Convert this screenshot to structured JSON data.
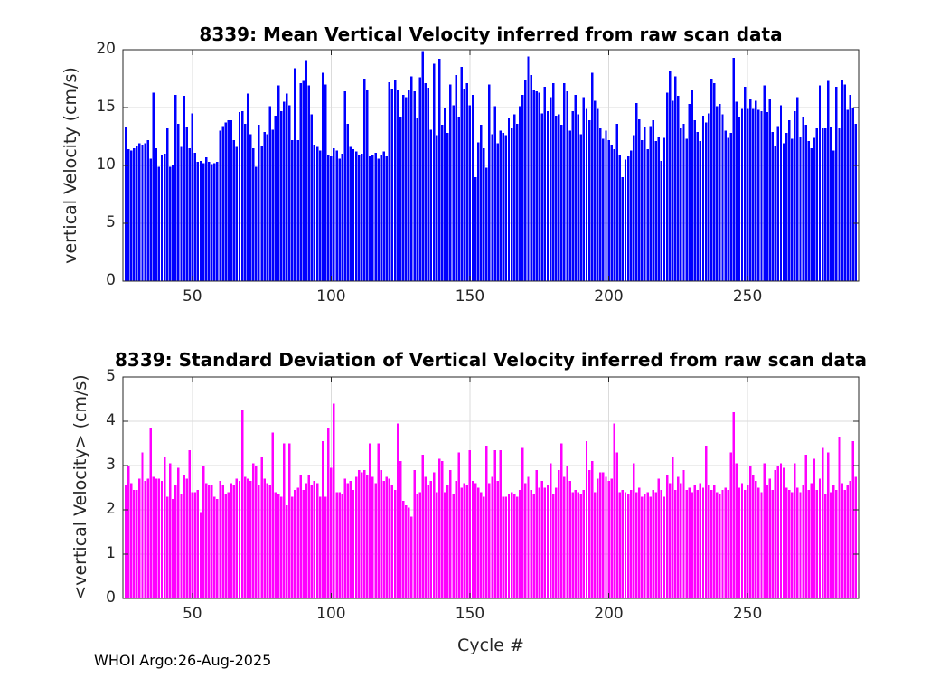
{
  "figure": {
    "watermark": "WHOI Argo:26-Aug-2025",
    "background": "#FFFFFF",
    "axis_color": "#262626",
    "grid_color": "#DBDBDB",
    "text_color": "#262626",
    "title_color": "#000000"
  },
  "chart_data": [
    {
      "type": "bar",
      "title": "8339: Mean Vertical Velocity inferred from raw scan data",
      "xlabel": "",
      "ylabel": "vertical Velocity (cm/s)",
      "legend": null,
      "grid": true,
      "bar_color": "#0000FF",
      "xlim": [
        25,
        290
      ],
      "ylim": [
        0,
        20
      ],
      "xticks": [
        50,
        100,
        150,
        200,
        250
      ],
      "yticks": [
        0,
        5,
        10,
        15,
        20
      ],
      "cycle_start": 26,
      "cycle_step": 1,
      "values": [
        13.3,
        11.4,
        11.3,
        11.5,
        11.7,
        11.9,
        11.8,
        11.9,
        12.2,
        10.6,
        16.3,
        11.5,
        9.9,
        10.9,
        11.0,
        13.2,
        9.9,
        10.0,
        16.1,
        13.6,
        11.6,
        16.0,
        13.3,
        11.5,
        14.5,
        11.1,
        10.3,
        10.4,
        10.2,
        10.7,
        10.3,
        10.1,
        10.2,
        10.3,
        13.0,
        13.4,
        13.7,
        13.9,
        13.9,
        12.2,
        11.6,
        14.6,
        14.7,
        13.6,
        16.2,
        12.7,
        11.5,
        9.9,
        13.5,
        11.7,
        12.9,
        12.7,
        15.1,
        13.1,
        14.3,
        16.9,
        14.7,
        15.5,
        16.2,
        15.2,
        12.2,
        18.4,
        12.2,
        17.1,
        17.3,
        19.1,
        16.9,
        14.4,
        11.8,
        11.6,
        11.3,
        18.0,
        17.0,
        10.9,
        10.8,
        11.5,
        11.3,
        10.6,
        11.0,
        16.4,
        13.6,
        11.6,
        11.4,
        11.2,
        10.9,
        11.0,
        17.5,
        16.5,
        10.8,
        10.9,
        11.1,
        10.6,
        10.9,
        11.2,
        10.8,
        17.2,
        16.6,
        17.4,
        16.5,
        14.2,
        16.1,
        15.9,
        16.5,
        17.7,
        16.4,
        14.1,
        17.6,
        19.9,
        17.1,
        16.7,
        13.1,
        18.8,
        12.6,
        19.2,
        13.5,
        15.0,
        12.8,
        17.0,
        15.2,
        17.8,
        14.2,
        18.5,
        16.6,
        17.1,
        15.2,
        16.1,
        9.0,
        12.0,
        13.5,
        11.5,
        9.8,
        17.0,
        12.7,
        15.1,
        11.9,
        13.0,
        12.8,
        12.6,
        14.1,
        13.2,
        14.4,
        13.6,
        15.1,
        16.1,
        17.4,
        19.4,
        17.8,
        16.5,
        16.4,
        16.3,
        14.5,
        16.8,
        14.7,
        15.9,
        17.1,
        14.3,
        14.4,
        13.5,
        17.1,
        16.4,
        13.0,
        14.7,
        16.1,
        14.4,
        12.7,
        15.9,
        14.9,
        13.9,
        18.0,
        15.6,
        14.9,
        13.2,
        12.3,
        13.0,
        12.2,
        11.8,
        11.4,
        13.6,
        10.9,
        9.0,
        10.5,
        10.8,
        11.3,
        12.6,
        15.4,
        14.0,
        12.2,
        13.3,
        11.4,
        13.4,
        13.9,
        12.1,
        12.5,
        10.4,
        12.4,
        16.3,
        18.2,
        15.6,
        17.7,
        16.0,
        13.2,
        13.6,
        12.3,
        15.3,
        16.5,
        13.9,
        12.9,
        12.1,
        14.3,
        13.7,
        14.5,
        17.5,
        17.1,
        15.1,
        15.3,
        14.4,
        13.0,
        12.4,
        12.8,
        19.3,
        15.5,
        14.2,
        14.9,
        16.8,
        14.9,
        15.7,
        14.9,
        15.6,
        14.8,
        14.7,
        16.9,
        14.6,
        15.8,
        12.9,
        11.7,
        13.4,
        15.2,
        11.9,
        12.8,
        13.9,
        12.3,
        14.7,
        15.9,
        12.5,
        14.2,
        13.5,
        12.1,
        11.5,
        12.4,
        13.2,
        16.9,
        13.2,
        13.2,
        17.3,
        13.3,
        11.3,
        16.8,
        13.2,
        17.4,
        17.0,
        14.8,
        16.1,
        15.0,
        13.6
      ]
    },
    {
      "type": "bar",
      "title": "8339: Standard Deviation of Vertical Velocity inferred from raw scan data",
      "xlabel": "Cycle #",
      "ylabel": "<vertical Velocity> (cm/s)",
      "legend": null,
      "grid": true,
      "bar_color": "#FF00FF",
      "xlim": [
        25,
        290
      ],
      "ylim": [
        0,
        5
      ],
      "xticks": [
        50,
        100,
        150,
        200,
        250
      ],
      "yticks": [
        0,
        1,
        2,
        3,
        4,
        5
      ],
      "cycle_start": 26,
      "cycle_step": 1,
      "values": [
        2.55,
        3.0,
        2.6,
        2.45,
        2.45,
        2.7,
        3.3,
        2.65,
        2.7,
        3.85,
        2.75,
        2.7,
        2.7,
        2.65,
        3.2,
        2.3,
        3.05,
        2.25,
        2.55,
        2.95,
        2.35,
        2.8,
        2.7,
        3.35,
        2.4,
        2.4,
        2.45,
        1.95,
        3.0,
        2.6,
        2.55,
        2.55,
        2.3,
        2.25,
        2.65,
        2.55,
        2.35,
        2.4,
        2.6,
        2.55,
        2.7,
        2.65,
        4.25,
        2.75,
        2.7,
        2.65,
        3.05,
        3.0,
        2.55,
        3.2,
        2.7,
        2.6,
        2.55,
        3.75,
        2.4,
        2.35,
        2.3,
        3.5,
        2.1,
        3.5,
        2.3,
        2.45,
        2.5,
        2.8,
        2.45,
        2.6,
        2.8,
        2.55,
        2.65,
        2.6,
        2.3,
        3.55,
        2.3,
        3.85,
        2.95,
        4.4,
        2.4,
        2.4,
        2.35,
        2.7,
        2.6,
        2.65,
        2.45,
        2.75,
        2.9,
        2.85,
        2.9,
        2.8,
        3.5,
        2.75,
        2.6,
        3.5,
        2.9,
        2.65,
        2.75,
        2.7,
        2.55,
        2.45,
        3.95,
        3.1,
        2.2,
        2.1,
        2.05,
        1.85,
        2.9,
        2.35,
        2.4,
        3.25,
        2.75,
        2.55,
        2.65,
        2.85,
        2.4,
        3.15,
        3.1,
        2.4,
        2.55,
        2.9,
        2.35,
        2.65,
        3.3,
        2.5,
        2.6,
        2.55,
        3.35,
        2.65,
        2.6,
        2.5,
        2.4,
        2.3,
        3.45,
        2.6,
        2.75,
        3.35,
        2.65,
        3.35,
        2.3,
        2.3,
        2.35,
        2.4,
        2.35,
        2.3,
        2.45,
        3.4,
        2.6,
        2.75,
        2.45,
        2.35,
        2.9,
        2.5,
        2.65,
        2.5,
        2.55,
        3.05,
        2.35,
        2.5,
        2.9,
        3.5,
        2.75,
        3.0,
        2.65,
        2.4,
        2.45,
        2.4,
        2.35,
        2.45,
        3.55,
        2.9,
        3.1,
        2.4,
        2.7,
        2.85,
        2.85,
        2.75,
        2.65,
        2.7,
        3.95,
        3.3,
        2.4,
        2.45,
        2.4,
        2.35,
        2.45,
        3.05,
        2.4,
        2.5,
        2.3,
        2.35,
        2.4,
        2.3,
        2.45,
        2.4,
        2.7,
        2.45,
        2.3,
        2.8,
        2.6,
        3.2,
        2.45,
        2.75,
        2.6,
        2.9,
        2.45,
        2.5,
        2.4,
        2.55,
        2.45,
        2.6,
        2.5,
        3.45,
        2.55,
        2.45,
        2.55,
        2.4,
        2.35,
        2.45,
        2.5,
        2.45,
        3.3,
        4.2,
        3.05,
        2.5,
        2.6,
        2.45,
        2.55,
        3.0,
        2.8,
        2.65,
        2.5,
        2.4,
        3.05,
        2.55,
        2.7,
        2.45,
        2.9,
        3.0,
        3.05,
        2.95,
        2.5,
        2.45,
        2.4,
        3.05,
        2.5,
        2.4,
        2.55,
        3.25,
        2.45,
        2.6,
        3.15,
        2.45,
        2.7,
        3.4,
        2.35,
        3.3,
        2.4,
        2.55,
        2.45,
        3.65,
        2.6,
        2.45,
        2.55,
        2.65,
        3.55,
        2.75
      ]
    }
  ]
}
